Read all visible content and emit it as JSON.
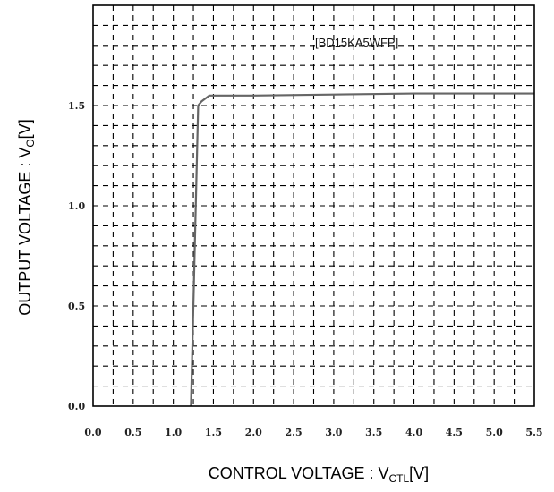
{
  "chart_data": {
    "type": "line",
    "xlabel": "CONTROL VOLTAGE : V",
    "xlabel_sub": "CTL",
    "xlabel_unit": "[V]",
    "ylabel": "OUTPUT VOLTAGE : V",
    "ylabel_sub": "O",
    "ylabel_unit": "[V]",
    "annotation": "[BD15KA5WFP]",
    "xlim": [
      0.0,
      5.5
    ],
    "ylim": [
      0.0,
      2.0
    ],
    "x_ticks": [
      "0.0",
      "0.5",
      "1.0",
      "1.5",
      "2.0",
      "2.5",
      "3.0",
      "3.5",
      "4.0",
      "4.5",
      "5.0",
      "5.5"
    ],
    "x_tick_values": [
      0.0,
      0.5,
      1.0,
      1.5,
      2.0,
      2.5,
      3.0,
      3.5,
      4.0,
      4.5,
      5.0,
      5.5
    ],
    "y_ticks": [
      "0.0",
      "0.5",
      "1.0",
      "1.5"
    ],
    "y_tick_values": [
      0.0,
      0.5,
      1.0,
      1.5
    ],
    "grid": true,
    "series": [
      {
        "x": [
          1.22,
          1.31,
          1.35,
          1.45,
          2.0,
          3.0,
          4.0,
          5.0,
          5.5
        ],
        "y": [
          0.0,
          1.5,
          1.52,
          1.55,
          1.55,
          1.555,
          1.56,
          1.56,
          1.56
        ],
        "color": "#666666"
      }
    ]
  }
}
